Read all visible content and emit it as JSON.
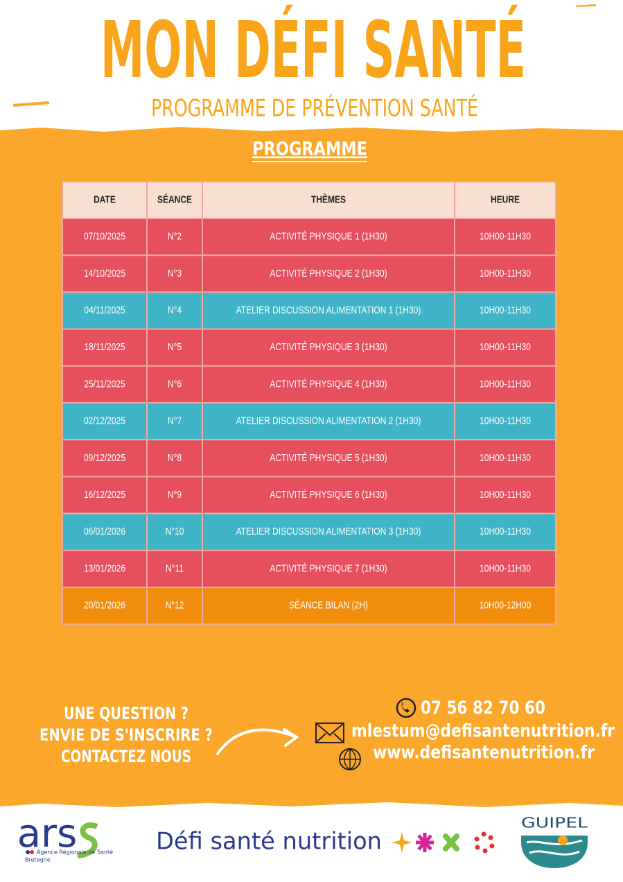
{
  "header": {
    "title": "MON DÉFI SANTÉ",
    "subtitle": "PROGRAMME DE PRÉVENTION SANTÉ"
  },
  "section_title": "PROGRAMME",
  "table": {
    "columns": [
      "DATE",
      "SÉANCE",
      "THÈMES",
      "HEURE"
    ],
    "rows": [
      {
        "cells": [
          "07/10/2025",
          "N°2",
          "ACTIVITÉ PHYSIQUE 1 (1H30)",
          "10H00-11H30"
        ],
        "color": "#e64f5e"
      },
      {
        "cells": [
          "14/10/2025",
          "N°3",
          "ACTIVITÉ PHYSIQUE 2 (1H30)",
          "10H00-11H30"
        ],
        "color": "#e64f5e"
      },
      {
        "cells": [
          "04/11/2025",
          "N°4",
          "ATELIER DISCUSSION ALIMENTATION 1 (1H30)",
          "10H00-11H30"
        ],
        "color": "#3fb4c6"
      },
      {
        "cells": [
          "18/11/2025",
          "N°5",
          "ACTIVITÉ PHYSIQUE 3 (1H30)",
          "10H00-11H30"
        ],
        "color": "#e64f5e"
      },
      {
        "cells": [
          "25/11/2025",
          "N°6",
          "ACTIVITÉ PHYSIQUE 4 (1H30)",
          "10H00-11H30"
        ],
        "color": "#e64f5e"
      },
      {
        "cells": [
          "02/12/2025",
          "N°7",
          "ATELIER DISCUSSION ALIMENTATION 2 (1H30)",
          "10H00-11H30"
        ],
        "color": "#3fb4c6"
      },
      {
        "cells": [
          "09/12/2025",
          "N°8",
          "ACTIVITÉ PHYSIQUE 5 (1H30)",
          "10H00-11H30"
        ],
        "color": "#e64f5e"
      },
      {
        "cells": [
          "16/12/2025",
          "N°9",
          "ACTIVITÉ PHYSIQUE 6 (1H30)",
          "10H00-11H30"
        ],
        "color": "#e64f5e"
      },
      {
        "cells": [
          "06/01/2026",
          "N°10",
          "ATELIER DISCUSSION ALIMENTATION 3 (1H30)",
          "10H00-11H30"
        ],
        "color": "#3fb4c6"
      },
      {
        "cells": [
          "13/01/2026",
          "N°11",
          "ACTIVITÉ PHYSIQUE 7 (1H30)",
          "10H00-11H30"
        ],
        "color": "#e64f5e"
      },
      {
        "cells": [
          "20/01/2026",
          "N°12",
          "SÉANCE BILAN (2H)",
          "10H00-12H00"
        ],
        "color": "#f28c0c"
      }
    ]
  },
  "contact": {
    "question": [
      "UNE QUESTION ?",
      "ENVIE DE S'INSCRIRE ?",
      "CONTACTEZ NOUS"
    ],
    "phone": "07 56 82 70 60",
    "email": "mlestum@defisantenutrition.fr",
    "website": "www.defisantenutrition.fr"
  },
  "footer": {
    "ars": "ars",
    "ars_name": "Agence Régionale de Santé",
    "ars_region": "Bretagne",
    "brand": "Défi santé nutrition",
    "partner": "GUIPEL"
  }
}
